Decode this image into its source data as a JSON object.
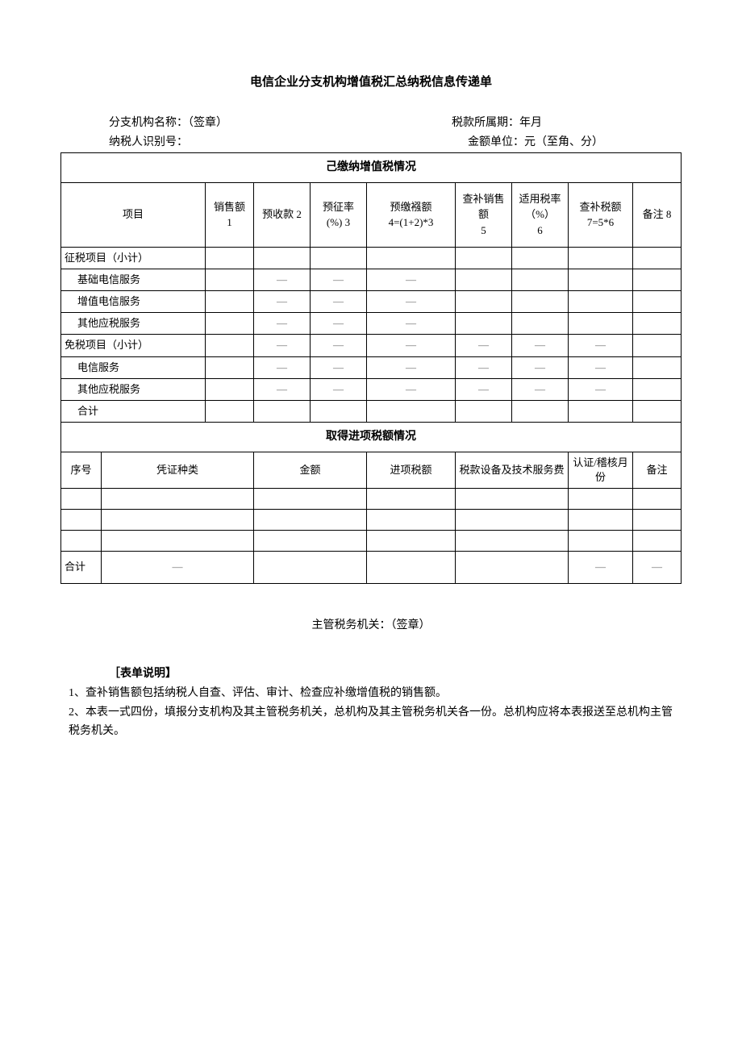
{
  "title": "电信企业分支机构增值税汇总纳税信息传递单",
  "meta": {
    "branch_label": "分支机构名称：（签章）",
    "period_label": "税款所属期：年月",
    "taxpayer_id_label": "纳税人识别号：",
    "unit_label": "金额单位：元（至角、分）"
  },
  "section1": {
    "header": "己缴纳增值税情况",
    "cols": {
      "c1": "项目",
      "c2": "销售额\n1",
      "c3": "预收款 2",
      "c4": "预征率\n(%) 3",
      "c5": "预缴襁额\n4=(1+2)*3",
      "c6": "查补销售\n额\n5",
      "c7": "适用税率\n（%）\n6",
      "c8": "查补税额\n7=5*6",
      "c9": "备注 8"
    },
    "rows": [
      {
        "label": "征税项目（小计）",
        "indent": false,
        "cells": [
          "",
          "",
          "",
          "",
          "",
          "",
          "",
          ""
        ]
      },
      {
        "label": "基础电信服务",
        "indent": true,
        "cells": [
          "",
          "—",
          "—",
          "—",
          "",
          "",
          "",
          ""
        ]
      },
      {
        "label": "增值电信服务",
        "indent": true,
        "cells": [
          "",
          "—",
          "—",
          "—",
          "",
          "",
          "",
          ""
        ]
      },
      {
        "label": "其他应税服务",
        "indent": true,
        "cells": [
          "",
          "—",
          "—",
          "—",
          "",
          "",
          "",
          ""
        ]
      },
      {
        "label": "免税项目（小计）",
        "indent": false,
        "cells": [
          "",
          "—",
          "—",
          "—",
          "—",
          "—",
          "—",
          ""
        ]
      },
      {
        "label": "电信服务",
        "indent": true,
        "cells": [
          "",
          "—",
          "—",
          "—",
          "—",
          "—",
          "—",
          ""
        ]
      },
      {
        "label": "其他应税服务",
        "indent": true,
        "cells": [
          "",
          "—",
          "—",
          "—",
          "—",
          "—",
          "—",
          ""
        ]
      },
      {
        "label": "合计",
        "indent": true,
        "cells": [
          "",
          "",
          "",
          "",
          "",
          "",
          "",
          ""
        ]
      }
    ]
  },
  "section2": {
    "header": "取得进项税额情况",
    "cols": {
      "c1": "序号",
      "c2": "凭证种类",
      "c3": "金额",
      "c4": "进项税额",
      "c5": "税款设备及技术服务费",
      "c6": "认证/稽核月份",
      "c7": "备注"
    },
    "rows": [
      {
        "cells": [
          "",
          "",
          "",
          "",
          "",
          "",
          ""
        ]
      },
      {
        "cells": [
          "",
          "",
          "",
          "",
          "",
          "",
          ""
        ]
      },
      {
        "cells": [
          "",
          "",
          "",
          "",
          "",
          "",
          ""
        ]
      },
      {
        "cells": [
          "合计",
          "—",
          "",
          "",
          "",
          "—",
          "—"
        ]
      }
    ]
  },
  "footer_sign": "主管税务机关：（签章）",
  "notes": {
    "title": "［表单说明】",
    "n1": "1、查补销售额包括纳税人自查、评估、审计、检查应补缴增值税的销售额。",
    "n2": "2、本表一式四份，填报分支机构及其主管税务机关，总机构及其主管税务机关各一份。总机构应将本表报送至总机构主管税务机关。"
  }
}
